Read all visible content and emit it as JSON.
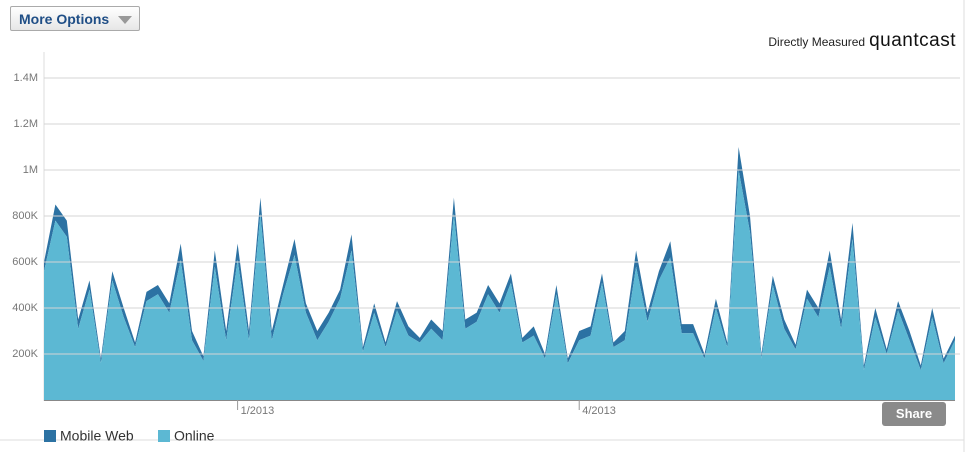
{
  "toolbar": {
    "more_options": "More Options",
    "share": "Share"
  },
  "attribution": {
    "prefix": "Directly Measured",
    "brand": "quantcast"
  },
  "chart_data": {
    "type": "stacked-area",
    "categories": [
      null,
      null,
      null,
      null,
      null,
      null,
      null,
      null,
      null,
      null,
      null,
      null,
      null,
      null,
      null,
      null,
      null,
      "1/2013",
      null,
      null,
      null,
      null,
      null,
      null,
      null,
      null,
      null,
      null,
      null,
      null,
      null,
      null,
      null,
      null,
      null,
      null,
      null,
      null,
      null,
      null,
      null,
      null,
      null,
      null,
      null,
      null,
      null,
      "4/2013",
      null,
      null,
      null,
      null,
      null,
      null,
      null,
      null,
      null,
      null,
      null,
      null,
      null,
      null,
      null,
      null,
      null,
      null,
      null,
      null,
      null,
      null,
      null,
      null,
      null,
      null,
      null,
      null,
      null,
      null,
      null,
      null,
      null
    ],
    "series": [
      {
        "name": "Mobile Web",
        "color": "#2c72a3",
        "values": [
          40000,
          70000,
          70000,
          40000,
          40000,
          20000,
          40000,
          40000,
          20000,
          40000,
          40000,
          40000,
          70000,
          40000,
          20000,
          70000,
          40000,
          70000,
          40000,
          70000,
          40000,
          40000,
          70000,
          40000,
          40000,
          40000,
          40000,
          70000,
          20000,
          40000,
          20000,
          40000,
          40000,
          20000,
          40000,
          40000,
          70000,
          40000,
          40000,
          40000,
          40000,
          40000,
          20000,
          40000,
          20000,
          40000,
          20000,
          40000,
          40000,
          40000,
          20000,
          40000,
          70000,
          40000,
          40000,
          70000,
          40000,
          40000,
          20000,
          40000,
          20000,
          100000,
          70000,
          20000,
          40000,
          40000,
          20000,
          40000,
          40000,
          70000,
          40000,
          70000,
          20000,
          40000,
          20000,
          40000,
          40000,
          20000,
          40000,
          20000,
          20000
        ]
      },
      {
        "name": "Online",
        "color": "#5cb8d3",
        "values": [
          560000,
          780000,
          710000,
          310000,
          480000,
          160000,
          520000,
          360000,
          230000,
          430000,
          460000,
          380000,
          610000,
          260000,
          170000,
          580000,
          260000,
          610000,
          260000,
          810000,
          260000,
          460000,
          630000,
          380000,
          260000,
          340000,
          440000,
          650000,
          210000,
          380000,
          230000,
          390000,
          280000,
          250000,
          310000,
          260000,
          810000,
          310000,
          340000,
          460000,
          380000,
          510000,
          250000,
          280000,
          180000,
          460000,
          160000,
          260000,
          280000,
          510000,
          230000,
          260000,
          580000,
          340000,
          520000,
          620000,
          290000,
          290000,
          180000,
          400000,
          230000,
          1000000,
          730000,
          180000,
          500000,
          310000,
          220000,
          440000,
          360000,
          580000,
          310000,
          700000,
          130000,
          360000,
          200000,
          390000,
          260000,
          130000,
          360000,
          160000,
          260000
        ]
      }
    ],
    "ylim": [
      0,
      1500000
    ],
    "yticks": [
      {
        "value": 200000,
        "label": "200K"
      },
      {
        "value": 400000,
        "label": "400K"
      },
      {
        "value": 600000,
        "label": "600K"
      },
      {
        "value": 800000,
        "label": "800K"
      },
      {
        "value": 1000000,
        "label": "1M"
      },
      {
        "value": 1200000,
        "label": "1.2M"
      },
      {
        "value": 1400000,
        "label": "1.4M"
      }
    ],
    "grid": true
  }
}
